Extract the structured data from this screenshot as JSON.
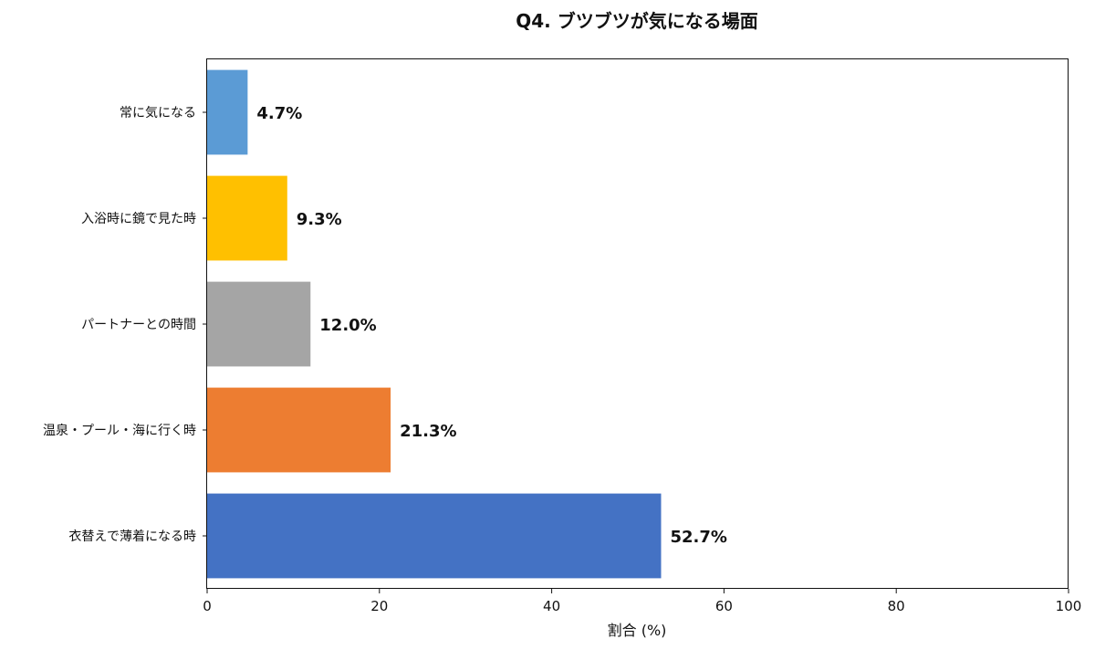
{
  "chart_data": {
    "type": "bar",
    "orientation": "horizontal",
    "title": "Q4. ブツブツが気になる場面",
    "xlabel": "割合 (%)",
    "ylabel": "",
    "xlim": [
      0,
      100
    ],
    "x_ticks": [
      0,
      20,
      40,
      60,
      80,
      100
    ],
    "grid": false,
    "categories": [
      "常に気になる",
      "入浴時に鏡で見た時",
      "パートナーとの時間",
      "温泉・プール・海に行く時",
      "衣替えで薄着になる時"
    ],
    "values": [
      4.7,
      9.3,
      12.0,
      21.3,
      52.7
    ],
    "value_labels": [
      "4.7%",
      "9.3%",
      "12.0%",
      "21.3%",
      "52.7%"
    ],
    "colors": [
      "#5b9bd5",
      "#ffc000",
      "#a5a5a5",
      "#ed7d31",
      "#4472c4"
    ]
  }
}
